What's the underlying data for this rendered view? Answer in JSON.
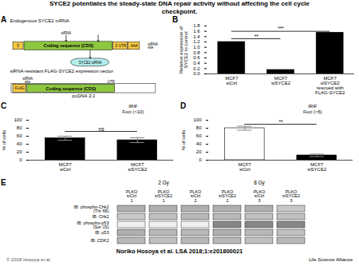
{
  "title": "SYCE2 potentiates the steady-state DNA repair activity without affecting the cell cycle\ncheckpoint.",
  "annotations": [
    "Noriko Hosoya et al. LSA 2018;1:e201800021",
    "© 2018 Hosoya et al.",
    "Life Science Alliance"
  ],
  "chart_data": [
    {
      "type": "diagram",
      "title": "A",
      "annotations": [
        "Endogenous SYCE2 mRNA",
        "siRNA",
        "5'",
        "Coding sequence (CDS)",
        "3' UTR",
        "AAA",
        "siRNA\nsite",
        "SYCE2 siRNA",
        "siRNA-resistant FLAG-SYCE2 expression vector",
        "siRNA\nsite",
        "UTR",
        "FLAG",
        "Coding sequence (CDS)",
        "pcDNA 3.1"
      ],
      "colors": [
        "#f5c842",
        "#8dc63f",
        "#f5c842",
        "#f5c842",
        "#b3ecec",
        "white",
        "#f5c842",
        "#8dc63f"
      ]
    },
    {
      "type": "bar",
      "title": "B",
      "categories": [
        "MCF7\nsiCtrl",
        "MCF7\nsiSYCE2",
        "MCF7\nsiSYCE2\nrescued with\nFLAG-SYCE2"
      ],
      "values": [
        1.2,
        0.15,
        1.55
      ],
      "colors": [
        "black",
        "black",
        "black"
      ],
      "ylabel": "Relative expression of\nSYCE2 to control",
      "ylim": [
        0,
        1.8
      ],
      "yticks": [
        {
          "value": 0,
          "label": "0.0"
        },
        0.2,
        0.4,
        0.6,
        0.8,
        {
          "value": 1.0,
          "label": "1.0"
        },
        1.2,
        1.4,
        1.6,
        1.8
      ],
      "grid": false,
      "annotations": [
        {
          "text": "**",
          "from": "MCF7\nsiCtrl",
          "to": "MCF7\nsiSYCE2",
          "y": 1.32
        },
        {
          "text": "***",
          "from": "MCF7\nsiCtrl",
          "to": "MCF7\nsiSYCE2\nrescued with\nFLAG-SYCE2",
          "y": 1.6
        }
      ]
    },
    {
      "type": "bar",
      "title": "C",
      "categories": [
        "MCF7\nsiCtrl",
        "MCF7\nsiSYCE2"
      ],
      "values": [
        55,
        50
      ],
      "errors": [
        5,
        6
      ],
      "colors": [
        "black",
        "black"
      ],
      "ylabel": "% of cells",
      "ylim": [
        0,
        100
      ],
      "yticks": [
        0,
        20,
        40,
        60,
        80,
        100
      ],
      "grid": false,
      "annotations": [
        "IRIF",
        "Foci (>10)",
        {
          "text": "ns",
          "from": "MCF7\nsiCtrl",
          "to": "MCF7\nsiSYCE2",
          "y": 72
        }
      ]
    },
    {
      "type": "bar",
      "title": "D",
      "categories": [
        "MCF7\nsiCtrl",
        "MCF7\nsiSYCE2"
      ],
      "values": [
        80,
        12
      ],
      "errors": [
        5,
        3
      ],
      "colors": [
        "white",
        "black"
      ],
      "ylabel": "% of cells",
      "ylim": [
        0,
        100
      ],
      "yticks": [
        0,
        20,
        40,
        60,
        80,
        100
      ],
      "grid": false,
      "annotations": [
        "IRIF",
        "Foci (>5)",
        {
          "text": "**",
          "from": "MCF7\nsiCtrl",
          "to": "MCF7\nsiSYCE2",
          "y": 90
        }
      ]
    },
    {
      "type": "blot",
      "title": "E",
      "annotations": [
        "2 Gy",
        "8 Gy"
      ],
      "categories": [
        "PLKO\nsiCtrl\n1",
        "PLKO\nsiSYCE2\n1",
        "PLKO\nsiCtrl\n2",
        "PLKO\nsiSYCE2\n2",
        "PLKO\nsiCtrl\n3",
        "PLKO\nsiSYCE2\n3"
      ],
      "series": [
        {
          "name": "IB: phospho-Chk2\n(Thr 68)",
          "colors": [
            "#b0b0b0",
            "#b0b0b0",
            "#b0b0b0",
            "#b0b0b0",
            "#b0b0b0",
            "#c8c8c8"
          ]
        },
        {
          "name": "IB: Chk2",
          "colors": [
            "#c8c8c8",
            "#c0c0c0",
            "#b8b8b8",
            "#b8b8b8",
            "#c0c0c0",
            "#c0c0c0"
          ]
        },
        {
          "name": "IB: phospho-p53\n(Ser 15)",
          "colors": [
            "#f0f0f0",
            "#f0f0f0",
            "#f0f0f0",
            "#888888",
            "#888888",
            "#888888"
          ]
        },
        {
          "name": "IB: p53",
          "colors": [
            "#b0b0b0",
            "#b8b8b8",
            "#b8b8b8",
            "#b0b0b0",
            "#b8b8b8",
            "#c0c0c0"
          ]
        },
        {
          "name": "IB: CDK2",
          "colors": [
            "#b8b8b8",
            "#c0c0c0",
            "#b8b8b8",
            "#b8b8b8",
            "#c0c0c0",
            "#b8b8b8"
          ]
        }
      ]
    }
  ]
}
